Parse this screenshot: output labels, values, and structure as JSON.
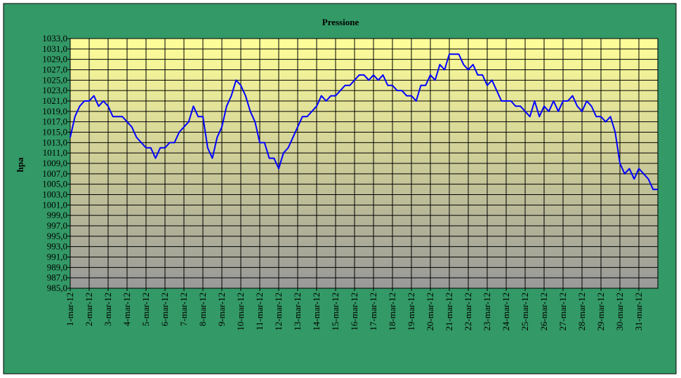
{
  "chart_data": {
    "type": "line",
    "title": "Pressione",
    "y_label": "hpa",
    "xlim": [
      0,
      31
    ],
    "ylim": [
      985,
      1033
    ],
    "grid": true,
    "xticks": [
      {
        "value": 0,
        "label": "1-mar-12"
      },
      {
        "value": 1,
        "label": "2-mar-12"
      },
      {
        "value": 2,
        "label": "3-mar-12"
      },
      {
        "value": 3,
        "label": "4-mar-12"
      },
      {
        "value": 4,
        "label": "5-mar-12"
      },
      {
        "value": 5,
        "label": "6-mar-12"
      },
      {
        "value": 6,
        "label": "7-mar-12"
      },
      {
        "value": 7,
        "label": "8-mar-12"
      },
      {
        "value": 8,
        "label": "9-mar-12"
      },
      {
        "value": 9,
        "label": "10-mar-12"
      },
      {
        "value": 10,
        "label": "11-mar-12"
      },
      {
        "value": 11,
        "label": "12-mar-12"
      },
      {
        "value": 12,
        "label": "13-mar-12"
      },
      {
        "value": 13,
        "label": "14-mar-12"
      },
      {
        "value": 14,
        "label": "15-mar-12"
      },
      {
        "value": 15,
        "label": "16-mar-12"
      },
      {
        "value": 16,
        "label": "17-mar-12"
      },
      {
        "value": 17,
        "label": "18-mar-12"
      },
      {
        "value": 18,
        "label": "19-mar-12"
      },
      {
        "value": 19,
        "label": "20-mar-12"
      },
      {
        "value": 20,
        "label": "21-mar-12"
      },
      {
        "value": 21,
        "label": "22-mar-12"
      },
      {
        "value": 22,
        "label": "23-mar-12"
      },
      {
        "value": 23,
        "label": "24-mar-12"
      },
      {
        "value": 24,
        "label": "25-mar-12"
      },
      {
        "value": 25,
        "label": "26-mar-12"
      },
      {
        "value": 26,
        "label": "27-mar-12"
      },
      {
        "value": 27,
        "label": "28-mar-12"
      },
      {
        "value": 28,
        "label": "29-mar-12"
      },
      {
        "value": 29,
        "label": "30-mar-12"
      },
      {
        "value": 30,
        "label": "31-mar-12"
      }
    ],
    "yticks": [
      {
        "value": 985,
        "label": "985,0"
      },
      {
        "value": 987,
        "label": "987,0"
      },
      {
        "value": 989,
        "label": "989,0"
      },
      {
        "value": 991,
        "label": "991,0"
      },
      {
        "value": 993,
        "label": "993,0"
      },
      {
        "value": 995,
        "label": "995,0"
      },
      {
        "value": 997,
        "label": "997,0"
      },
      {
        "value": 999,
        "label": "999,0"
      },
      {
        "value": 1001,
        "label": "1001,0"
      },
      {
        "value": 1003,
        "label": "1003,0"
      },
      {
        "value": 1005,
        "label": "1005,0"
      },
      {
        "value": 1007,
        "label": "1007,0"
      },
      {
        "value": 1009,
        "label": "1009,0"
      },
      {
        "value": 1011,
        "label": "1011,0"
      },
      {
        "value": 1013,
        "label": "1013,0"
      },
      {
        "value": 1015,
        "label": "1015,0"
      },
      {
        "value": 1017,
        "label": "1017,0"
      },
      {
        "value": 1019,
        "label": "1019,0"
      },
      {
        "value": 1021,
        "label": "1021,0"
      },
      {
        "value": 1023,
        "label": "1023,0"
      },
      {
        "value": 1025,
        "label": "1025,0"
      },
      {
        "value": 1027,
        "label": "1027,0"
      },
      {
        "value": 1029,
        "label": "1029,0"
      },
      {
        "value": 1031,
        "label": "1031,0"
      },
      {
        "value": 1033,
        "label": "1033,0"
      }
    ],
    "x": [
      0,
      0.25,
      0.5,
      0.75,
      1,
      1.25,
      1.5,
      1.75,
      2,
      2.25,
      2.5,
      2.75,
      3,
      3.25,
      3.5,
      3.75,
      4,
      4.25,
      4.5,
      4.75,
      5,
      5.25,
      5.5,
      5.75,
      6,
      6.25,
      6.5,
      6.75,
      7,
      7.25,
      7.5,
      7.75,
      8,
      8.25,
      8.5,
      8.75,
      9,
      9.25,
      9.5,
      9.75,
      10,
      10.25,
      10.5,
      10.75,
      11,
      11.25,
      11.5,
      11.75,
      12,
      12.25,
      12.5,
      12.75,
      13,
      13.25,
      13.5,
      13.75,
      14,
      14.25,
      14.5,
      14.75,
      15,
      15.25,
      15.5,
      15.75,
      16,
      16.25,
      16.5,
      16.75,
      17,
      17.25,
      17.5,
      17.75,
      18,
      18.25,
      18.5,
      18.75,
      19,
      19.25,
      19.5,
      19.75,
      20,
      20.25,
      20.5,
      20.75,
      21,
      21.25,
      21.5,
      21.75,
      22,
      22.25,
      22.5,
      22.75,
      23,
      23.25,
      23.5,
      23.75,
      24,
      24.25,
      24.5,
      24.75,
      25,
      25.25,
      25.5,
      25.75,
      26,
      26.25,
      26.5,
      26.75,
      27,
      27.25,
      27.5,
      27.75,
      28,
      28.25,
      28.5,
      28.75,
      29,
      29.25,
      29.5,
      29.75,
      30,
      30.25,
      30.5,
      30.75,
      31
    ],
    "series": [
      {
        "color": "#0000ff",
        "values": [
          1014,
          1018,
          1020,
          1021,
          1021,
          1022,
          1020,
          1021,
          1020,
          1018,
          1018,
          1018,
          1017,
          1016,
          1014,
          1013,
          1012,
          1012,
          1010,
          1012,
          1012,
          1013,
          1013,
          1015,
          1016,
          1017,
          1020,
          1018,
          1018,
          1012,
          1010,
          1014,
          1016,
          1020,
          1022,
          1025,
          1024,
          1022,
          1019,
          1017,
          1013,
          1013,
          1010,
          1010,
          1008,
          1011,
          1012,
          1014,
          1016,
          1018,
          1018,
          1019,
          1020,
          1022,
          1021,
          1022,
          1022,
          1023,
          1024,
          1024,
          1025,
          1026,
          1026,
          1025,
          1026,
          1025,
          1026,
          1024,
          1024,
          1023,
          1023,
          1022,
          1022,
          1021,
          1024,
          1024,
          1026,
          1025,
          1028,
          1027,
          1030,
          1030,
          1030,
          1028,
          1027,
          1028,
          1026,
          1026,
          1024,
          1025,
          1023,
          1021,
          1021,
          1021,
          1020,
          1020,
          1019,
          1018,
          1021,
          1018,
          1020,
          1019,
          1021,
          1019,
          1021,
          1021,
          1022,
          1020,
          1019,
          1021,
          1020,
          1018,
          1018,
          1017,
          1018,
          1015,
          1009,
          1007,
          1008,
          1006,
          1008,
          1007,
          1006,
          1004,
          1004
        ]
      }
    ]
  }
}
